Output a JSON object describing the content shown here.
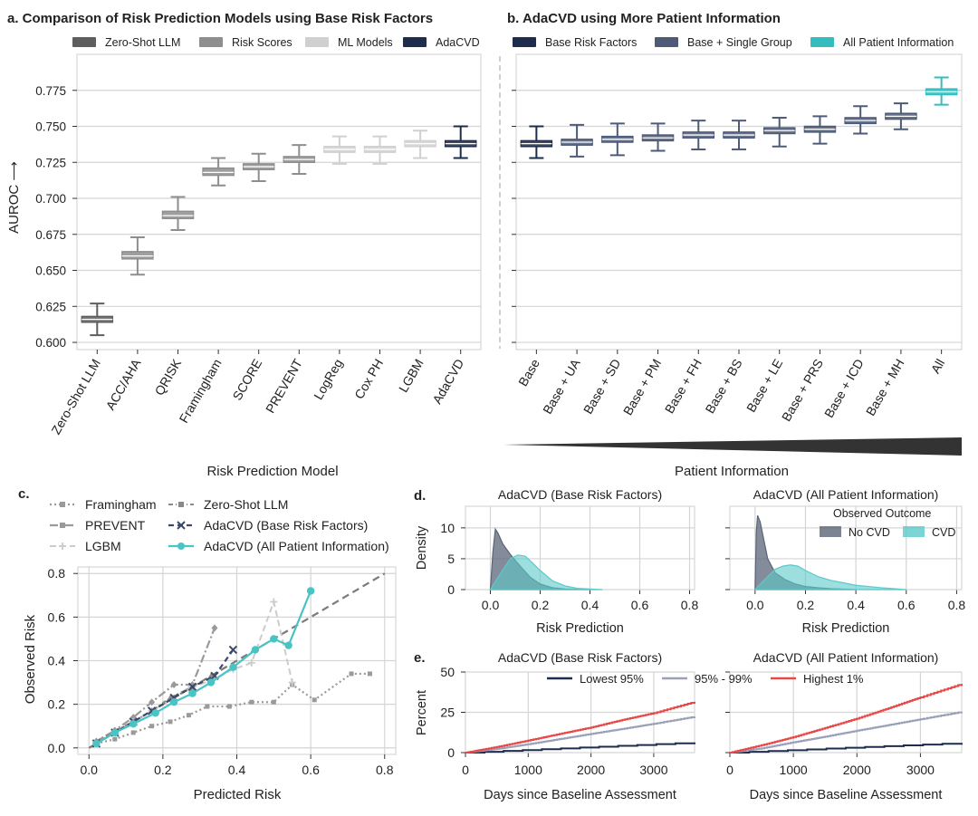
{
  "panel_a": {
    "label": "a.",
    "title": "Comparison of Risk Prediction Models using Base Risk Factors",
    "legend": [
      {
        "name": "Zero-Shot LLM",
        "color": "#5e5e5e"
      },
      {
        "name": "Risk Scores",
        "color": "#8e8e8e"
      },
      {
        "name": "ML Models",
        "color": "#d0d0d0"
      },
      {
        "name": "AdaCVD",
        "color": "#1e2c4e"
      }
    ],
    "xlabel": "Risk Prediction Model",
    "ylabel": "AUROC ⟶"
  },
  "panel_b": {
    "label": "b.",
    "title": "AdaCVD using More Patient Information",
    "legend": [
      {
        "name": "Base Risk Factors",
        "color": "#1e2c4e"
      },
      {
        "name": "Base + Single Group",
        "color": "#4d5a78"
      },
      {
        "name": "All Patient Information",
        "color": "#35bcbd"
      }
    ],
    "xlabel": "Patient Information"
  },
  "panel_c": {
    "label": "c.",
    "xlabel": "Predicted Risk",
    "ylabel": "Observed Risk"
  },
  "panel_d": {
    "label": "d.",
    "xlabel": "Risk Prediction",
    "ylabel": "Density",
    "titles": [
      "AdaCVD (Base Risk Factors)",
      "AdaCVD (All Patient Information)"
    ],
    "legend_title": "Observed Outcome",
    "legend": [
      {
        "name": "No CVD",
        "color": "#5b6478"
      },
      {
        "name": "CVD",
        "color": "#5cc9c9"
      }
    ]
  },
  "panel_e": {
    "label": "e.",
    "xlabel": "Days since Baseline Assessment",
    "ylabel": "Percent",
    "titles": [
      "AdaCVD (Base Risk Factors)",
      "AdaCVD (All Patient Information)"
    ],
    "legend": [
      {
        "name": "Lowest 95%",
        "color": "#1e2c4e"
      },
      {
        "name": "95% - 99%",
        "color": "#9aa0b8"
      },
      {
        "name": "Highest 1%",
        "color": "#e84848"
      }
    ]
  },
  "chart_data": [
    {
      "id": "a",
      "type": "box",
      "title": "Comparison of Risk Prediction Models using Base Risk Factors",
      "xlabel": "Risk Prediction Model",
      "ylabel": "AUROC ⟶",
      "ylim": [
        0.595,
        0.8
      ],
      "yticks": [
        0.6,
        0.625,
        0.65,
        0.675,
        0.7,
        0.725,
        0.75,
        0.775
      ],
      "categories": [
        "Zero-Shot LLM",
        "ACC/AHA",
        "QRISK",
        "Framingham",
        "SCORE",
        "PREVENT",
        "LogReg",
        "Cox PH",
        "LGBM",
        "AdaCVD"
      ],
      "groups": [
        "Zero-Shot LLM",
        "Risk Scores",
        "Risk Scores",
        "Risk Scores",
        "Risk Scores",
        "Risk Scores",
        "ML Models",
        "ML Models",
        "ML Models",
        "AdaCVD"
      ],
      "boxes": [
        {
          "q1": 0.614,
          "median": 0.616,
          "q3": 0.618,
          "lo": 0.605,
          "hi": 0.627
        },
        {
          "q1": 0.658,
          "median": 0.66,
          "q3": 0.663,
          "lo": 0.647,
          "hi": 0.673
        },
        {
          "q1": 0.686,
          "median": 0.688,
          "q3": 0.691,
          "lo": 0.678,
          "hi": 0.701
        },
        {
          "q1": 0.716,
          "median": 0.718,
          "q3": 0.721,
          "lo": 0.709,
          "hi": 0.728
        },
        {
          "q1": 0.72,
          "median": 0.722,
          "q3": 0.724,
          "lo": 0.712,
          "hi": 0.731
        },
        {
          "q1": 0.725,
          "median": 0.727,
          "q3": 0.729,
          "lo": 0.717,
          "hi": 0.737
        },
        {
          "q1": 0.732,
          "median": 0.734,
          "q3": 0.736,
          "lo": 0.724,
          "hi": 0.743
        },
        {
          "q1": 0.732,
          "median": 0.734,
          "q3": 0.736,
          "lo": 0.724,
          "hi": 0.743
        },
        {
          "q1": 0.736,
          "median": 0.738,
          "q3": 0.74,
          "lo": 0.728,
          "hi": 0.747
        },
        {
          "q1": 0.736,
          "median": 0.738,
          "q3": 0.74,
          "lo": 0.728,
          "hi": 0.75
        }
      ]
    },
    {
      "id": "b",
      "type": "box",
      "title": "AdaCVD using More Patient Information",
      "xlabel": "Patient Information",
      "ylim": [
        0.595,
        0.8
      ],
      "categories": [
        "Base",
        "Base + UA",
        "Base + SD",
        "Base + PM",
        "Base + FH",
        "Base + BS",
        "Base + LE",
        "Base + PRS",
        "Base + ICD",
        "Base + MH",
        "All"
      ],
      "boxes": [
        {
          "q1": 0.736,
          "median": 0.738,
          "q3": 0.74,
          "lo": 0.728,
          "hi": 0.75
        },
        {
          "q1": 0.737,
          "median": 0.739,
          "q3": 0.741,
          "lo": 0.729,
          "hi": 0.751
        },
        {
          "q1": 0.739,
          "median": 0.741,
          "q3": 0.743,
          "lo": 0.73,
          "hi": 0.752
        },
        {
          "q1": 0.74,
          "median": 0.742,
          "q3": 0.744,
          "lo": 0.733,
          "hi": 0.752
        },
        {
          "q1": 0.742,
          "median": 0.744,
          "q3": 0.746,
          "lo": 0.734,
          "hi": 0.754
        },
        {
          "q1": 0.742,
          "median": 0.744,
          "q3": 0.746,
          "lo": 0.734,
          "hi": 0.754
        },
        {
          "q1": 0.745,
          "median": 0.747,
          "q3": 0.749,
          "lo": 0.736,
          "hi": 0.756
        },
        {
          "q1": 0.746,
          "median": 0.748,
          "q3": 0.75,
          "lo": 0.738,
          "hi": 0.757
        },
        {
          "q1": 0.752,
          "median": 0.754,
          "q3": 0.756,
          "lo": 0.745,
          "hi": 0.764
        },
        {
          "q1": 0.755,
          "median": 0.757,
          "q3": 0.759,
          "lo": 0.748,
          "hi": 0.766
        },
        {
          "q1": 0.772,
          "median": 0.774,
          "q3": 0.776,
          "lo": 0.765,
          "hi": 0.784
        }
      ]
    },
    {
      "id": "c",
      "type": "line",
      "xlabel": "Predicted Risk",
      "ylabel": "Observed Risk",
      "xlim": [
        -0.03,
        0.83
      ],
      "ylim": [
        -0.03,
        0.83
      ],
      "xticks": [
        0.0,
        0.2,
        0.4,
        0.6,
        0.8
      ],
      "yticks": [
        0.0,
        0.2,
        0.4,
        0.6,
        0.8
      ],
      "series": [
        {
          "name": "Framingham",
          "color": "#9a9a9a",
          "x": [
            0.02,
            0.07,
            0.12,
            0.17,
            0.22,
            0.27,
            0.32,
            0.38,
            0.44,
            0.5,
            0.55,
            0.61,
            0.71,
            0.76
          ],
          "y": [
            0.02,
            0.04,
            0.07,
            0.1,
            0.12,
            0.15,
            0.19,
            0.19,
            0.21,
            0.21,
            0.29,
            0.22,
            0.34,
            0.34
          ]
        },
        {
          "name": "PREVENT",
          "color": "#9a9a9a",
          "x": [
            0.02,
            0.07,
            0.12,
            0.17,
            0.23,
            0.28,
            0.34
          ],
          "y": [
            0.03,
            0.08,
            0.14,
            0.21,
            0.29,
            0.29,
            0.55
          ]
        },
        {
          "name": "LGBM",
          "color": "#cccccc",
          "x": [
            0.02,
            0.07,
            0.12,
            0.17,
            0.22,
            0.27,
            0.33,
            0.39,
            0.44,
            0.5,
            0.55
          ],
          "y": [
            0.02,
            0.07,
            0.12,
            0.17,
            0.22,
            0.27,
            0.31,
            0.36,
            0.39,
            0.67,
            0.3
          ]
        },
        {
          "name": "Zero-Shot LLM",
          "color": "#8a8a8a",
          "x": [
            0.02,
            0.07,
            0.12,
            0.17,
            0.22,
            0.28,
            0.33
          ],
          "y": [
            0.03,
            0.08,
            0.12,
            0.17,
            0.23,
            0.28,
            0.33
          ]
        },
        {
          "name": "AdaCVD (Base Risk Factors)",
          "color": "#3c4a6a",
          "x": [
            0.02,
            0.07,
            0.12,
            0.17,
            0.23,
            0.28,
            0.34,
            0.39
          ],
          "y": [
            0.02,
            0.07,
            0.12,
            0.17,
            0.23,
            0.28,
            0.33,
            0.45
          ]
        },
        {
          "name": "AdaCVD (All Patient Information)",
          "color": "#48c4c4",
          "x": [
            0.02,
            0.07,
            0.12,
            0.18,
            0.23,
            0.28,
            0.33,
            0.39,
            0.45,
            0.5,
            0.54,
            0.6
          ],
          "y": [
            0.02,
            0.07,
            0.11,
            0.16,
            0.21,
            0.25,
            0.3,
            0.37,
            0.45,
            0.5,
            0.47,
            0.72
          ]
        }
      ]
    },
    {
      "id": "d",
      "type": "area",
      "xlabel": "Risk Prediction",
      "ylabel": "Density",
      "xlim": [
        -0.1,
        0.82
      ],
      "ylim": [
        0,
        13.5
      ],
      "xticks": [
        0.0,
        0.2,
        0.4,
        0.6,
        0.8
      ],
      "yticks": [
        0,
        5,
        10
      ],
      "panels": [
        {
          "title": "AdaCVD (Base Risk Factors)",
          "series": [
            {
              "name": "No CVD",
              "x": [
                0.0,
                0.01,
                0.02,
                0.03,
                0.05,
                0.08,
                0.12,
                0.16,
                0.2,
                0.25,
                0.3,
                0.4
              ],
              "y": [
                0,
                6,
                9.8,
                9.2,
                7.4,
                5.7,
                3.8,
                2.0,
                0.9,
                0.3,
                0.1,
                0
              ]
            },
            {
              "name": "CVD",
              "x": [
                0.0,
                0.02,
                0.05,
                0.08,
                0.11,
                0.14,
                0.17,
                0.2,
                0.25,
                0.3,
                0.35,
                0.4,
                0.45
              ],
              "y": [
                0,
                1.3,
                3.2,
                5.0,
                5.6,
                5.4,
                4.3,
                3.1,
                1.4,
                0.6,
                0.2,
                0.1,
                0
              ]
            }
          ]
        },
        {
          "title": "AdaCVD (All Patient Information)",
          "series": [
            {
              "name": "No CVD",
              "x": [
                0.0,
                0.005,
                0.01,
                0.02,
                0.03,
                0.05,
                0.08,
                0.12,
                0.16,
                0.2,
                0.25,
                0.3,
                0.4
              ],
              "y": [
                0,
                9.5,
                12.0,
                11.0,
                9.0,
                5.0,
                2.7,
                1.6,
                0.9,
                0.5,
                0.3,
                0.15,
                0
              ]
            },
            {
              "name": "CVD",
              "x": [
                0.0,
                0.02,
                0.05,
                0.08,
                0.11,
                0.14,
                0.17,
                0.2,
                0.25,
                0.3,
                0.35,
                0.4,
                0.5,
                0.6
              ],
              "y": [
                0,
                0.9,
                2.1,
                3.3,
                3.8,
                4.0,
                3.8,
                3.1,
                2.1,
                1.5,
                1.1,
                0.7,
                0.3,
                0
              ]
            }
          ]
        }
      ]
    },
    {
      "id": "e",
      "type": "line",
      "xlabel": "Days since Baseline Assessment",
      "ylabel": "Percent",
      "xlim": [
        0,
        3650
      ],
      "ylim": [
        0,
        50
      ],
      "xticks": [
        0,
        1000,
        2000,
        3000
      ],
      "yticks": [
        0,
        25,
        50
      ],
      "panels": [
        {
          "title": "AdaCVD (Base Risk Factors)",
          "series": [
            {
              "name": "Lowest 95%",
              "x": [
                0,
                3650
              ],
              "y": [
                0,
                6.3
              ]
            },
            {
              "name": "95% - 99%",
              "x": [
                0,
                500,
                1000,
                1500,
                2000,
                2500,
                3000,
                3650
              ],
              "y": [
                0,
                2.3,
                5.2,
                8.4,
                11.6,
                14.7,
                17.9,
                22.3
              ]
            },
            {
              "name": "Highest 1%",
              "x": [
                0,
                500,
                1000,
                1500,
                2000,
                2500,
                3000,
                3650
              ],
              "y": [
                0,
                3.5,
                7.5,
                11.6,
                15.6,
                20.3,
                24.5,
                31.5
              ]
            }
          ]
        },
        {
          "title": "AdaCVD (All Patient Information)",
          "series": [
            {
              "name": "Lowest 95%",
              "x": [
                0,
                3650
              ],
              "y": [
                0,
                6.0
              ]
            },
            {
              "name": "95% - 99%",
              "x": [
                0,
                500,
                1000,
                1500,
                2000,
                2500,
                3000,
                3650
              ],
              "y": [
                0,
                2.6,
                6.4,
                9.9,
                13.6,
                17.1,
                20.7,
                25.3
              ]
            },
            {
              "name": "Highest 1%",
              "x": [
                0,
                500,
                1000,
                1500,
                2000,
                2500,
                3000,
                3650
              ],
              "y": [
                0,
                4.6,
                9.6,
                15.3,
                21.1,
                27.6,
                34.3,
                42.6
              ]
            }
          ]
        }
      ]
    }
  ]
}
